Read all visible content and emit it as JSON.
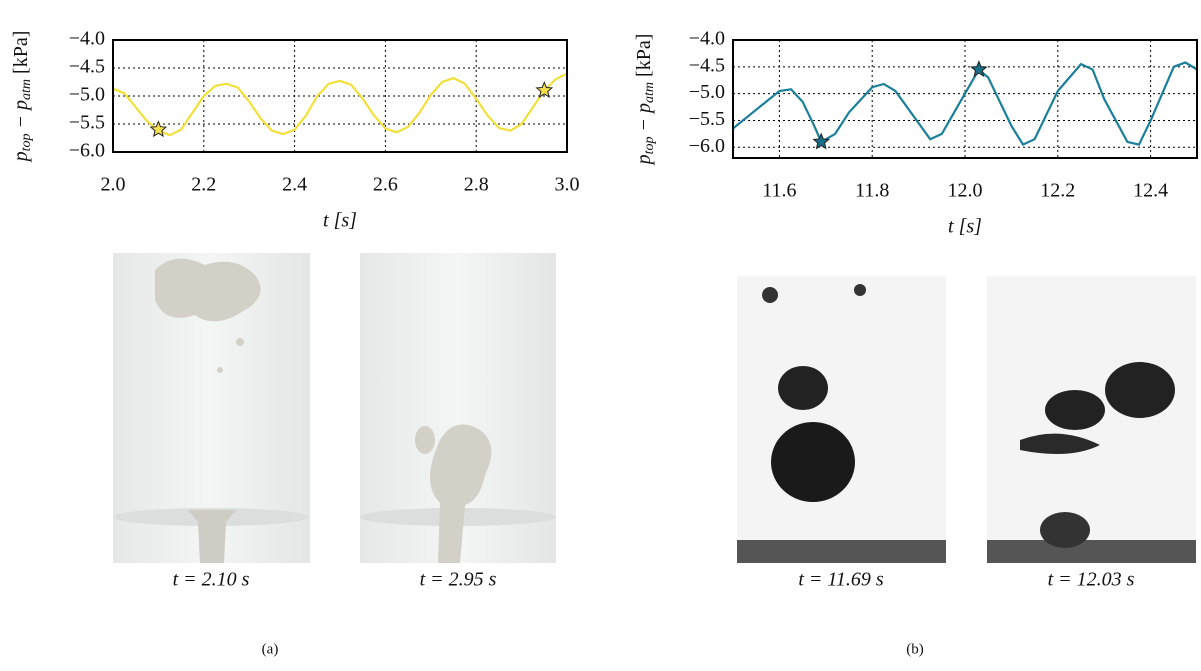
{
  "chart_data": [
    {
      "type": "line",
      "color": "#f2e03a",
      "grid": true,
      "ylabel": [
        "p",
        "top",
        " − p",
        "atm",
        " [kPa]"
      ],
      "xlabel": "t [s]",
      "xlim": [
        2.0,
        3.0
      ],
      "xticks": [
        {
          "value": 2.0,
          "label": "2.0"
        },
        2.2,
        2.4,
        2.6,
        2.8,
        {
          "value": 3.0,
          "label": "3.0"
        }
      ],
      "ylim": [
        -6.0,
        -4.0
      ],
      "yticks": [
        {
          "value": -4.0,
          "label": "−4.0"
        },
        {
          "value": -4.5,
          "label": "−4.5"
        },
        {
          "value": -5.0,
          "label": "−5.0"
        },
        {
          "value": -5.5,
          "label": "−5.5"
        },
        {
          "value": -6.0,
          "label": "−6.0"
        }
      ],
      "x": [
        2.0,
        2.025,
        2.05,
        2.075,
        2.1,
        2.125,
        2.15,
        2.175,
        2.2,
        2.225,
        2.25,
        2.275,
        2.3,
        2.325,
        2.35,
        2.375,
        2.4,
        2.425,
        2.45,
        2.475,
        2.5,
        2.525,
        2.55,
        2.575,
        2.6,
        2.625,
        2.65,
        2.675,
        2.7,
        2.725,
        2.75,
        2.775,
        2.8,
        2.825,
        2.85,
        2.875,
        2.9,
        2.925,
        2.95,
        2.975,
        3.0
      ],
      "values": [
        -4.87,
        -4.95,
        -5.2,
        -5.45,
        -5.62,
        -5.7,
        -5.6,
        -5.3,
        -5.0,
        -4.82,
        -4.78,
        -4.85,
        -5.1,
        -5.4,
        -5.62,
        -5.68,
        -5.6,
        -5.35,
        -5.0,
        -4.78,
        -4.73,
        -4.8,
        -5.05,
        -5.35,
        -5.58,
        -5.65,
        -5.55,
        -5.3,
        -4.98,
        -4.75,
        -4.68,
        -4.78,
        -5.05,
        -5.35,
        -5.57,
        -5.62,
        -5.5,
        -5.2,
        -4.9,
        -4.7,
        -4.6
      ],
      "markers": {
        "color": "#f5e04a",
        "x": [
          2.1,
          2.95
        ],
        "values": [
          -5.6,
          -4.9
        ]
      }
    },
    {
      "type": "line",
      "color": "#1a7f9a",
      "grid": true,
      "ylabel": [
        "p",
        "top",
        " − p",
        "atm",
        " [kPa]"
      ],
      "xlabel": "t [s]",
      "xlim": [
        11.5,
        12.5
      ],
      "xticks": [
        11.6,
        11.8,
        {
          "value": 12.0,
          "label": "12.0"
        },
        12.2,
        12.4
      ],
      "ylim": [
        -6.2,
        -4.0
      ],
      "yticks": [
        {
          "value": -4.0,
          "label": "−4.0"
        },
        {
          "value": -4.5,
          "label": "−4.5"
        },
        {
          "value": -5.0,
          "label": "−5.0"
        },
        {
          "value": -5.5,
          "label": "−5.5"
        },
        {
          "value": -6.0,
          "label": "−6.0"
        }
      ],
      "x": [
        11.5,
        11.55,
        11.6,
        11.625,
        11.65,
        11.675,
        11.69,
        11.72,
        11.75,
        11.8,
        11.825,
        11.85,
        11.9,
        11.925,
        11.95,
        12.0,
        12.03,
        12.05,
        12.1,
        12.125,
        12.15,
        12.2,
        12.25,
        12.275,
        12.3,
        12.35,
        12.375,
        12.4,
        12.45,
        12.475,
        12.5
      ],
      "values": [
        -5.65,
        -5.3,
        -4.95,
        -4.92,
        -5.15,
        -5.6,
        -5.9,
        -5.75,
        -5.35,
        -4.88,
        -4.82,
        -4.95,
        -5.55,
        -5.85,
        -5.75,
        -5.0,
        -4.55,
        -4.7,
        -5.6,
        -5.95,
        -5.85,
        -4.95,
        -4.45,
        -4.55,
        -5.1,
        -5.9,
        -5.95,
        -5.5,
        -4.5,
        -4.42,
        -4.55
      ],
      "markers": {
        "color": "#1a6f88",
        "x": [
          11.69,
          12.03
        ],
        "values": [
          -5.9,
          -4.55
        ]
      }
    }
  ],
  "panels": [
    {
      "label": "(a)",
      "snapshots": [
        "t = 2.10 s",
        "t = 2.95 s"
      ]
    },
    {
      "label": "(b)",
      "snapshots": [
        "t = 11.69 s",
        "t = 12.03 s"
      ]
    }
  ]
}
